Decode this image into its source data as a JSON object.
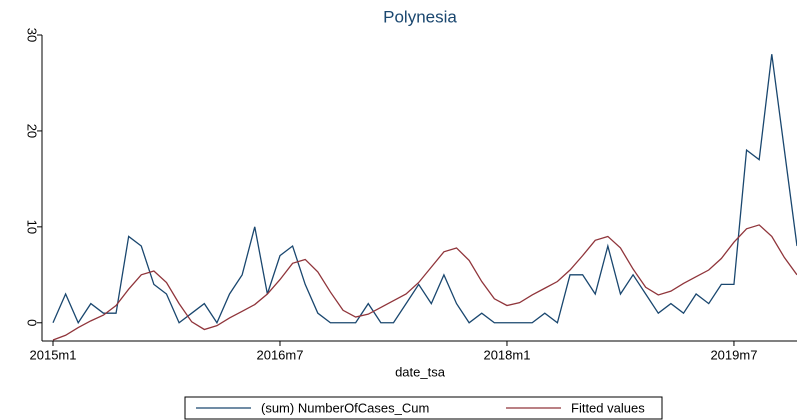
{
  "chart_data": {
    "type": "line",
    "title": "Polynesia",
    "x_label": "date_tsa",
    "grid": false,
    "x": [
      660,
      661,
      662,
      663,
      664,
      665,
      666,
      667,
      668,
      669,
      670,
      671,
      672,
      673,
      674,
      675,
      676,
      677,
      678,
      679,
      680,
      681,
      682,
      683,
      684,
      685,
      686,
      687,
      688,
      689,
      690,
      691,
      692,
      693,
      694,
      695,
      696,
      697,
      698,
      699,
      700,
      701,
      702,
      703,
      704,
      705,
      706,
      707,
      708,
      709,
      710,
      711,
      712,
      713,
      714,
      715,
      716,
      717,
      718,
      719
    ],
    "xlim": [
      660,
      719
    ],
    "xticks": [
      {
        "value": 660,
        "label": "2015m1"
      },
      {
        "value": 678,
        "label": "2016m7"
      },
      {
        "value": 696,
        "label": "2018m1"
      },
      {
        "value": 714,
        "label": "2019m7"
      }
    ],
    "ylim": [
      -1.9,
      30
    ],
    "yticks": [
      0,
      10,
      20,
      30
    ],
    "series": [
      {
        "name": "(sum) NumberOfCases_Cum",
        "color": "#1a476f",
        "values": [
          0,
          3,
          0,
          2,
          1,
          1,
          9,
          8,
          4,
          3,
          0,
          1,
          2,
          0,
          3,
          5,
          10,
          3,
          7,
          8,
          4,
          1,
          0,
          0,
          0,
          2,
          0,
          0,
          2,
          4,
          2,
          5,
          2,
          0,
          1,
          0,
          0,
          0,
          0,
          1,
          0,
          5,
          5,
          3,
          8,
          3,
          5,
          3,
          1,
          2,
          1,
          3,
          2,
          4,
          4,
          18,
          17,
          28,
          18,
          8
        ]
      },
      {
        "name": "Fitted values",
        "color": "#90353b",
        "values": [
          -1.8,
          -1.3,
          -0.5,
          0.2,
          0.8,
          1.8,
          3.5,
          5,
          5.4,
          4.2,
          2,
          0.1,
          -0.7,
          -0.3,
          0.5,
          1.2,
          1.9,
          3,
          4.5,
          6.2,
          6.6,
          5.3,
          3.2,
          1.3,
          0.6,
          0.9,
          1.6,
          2.3,
          3,
          4.2,
          5.8,
          7.4,
          7.8,
          6.5,
          4.3,
          2.5,
          1.8,
          2.1,
          2.9,
          3.6,
          4.3,
          5.5,
          7,
          8.6,
          9,
          7.8,
          5.6,
          3.7,
          2.9,
          3.3,
          4.1,
          4.8,
          5.5,
          6.7,
          8.4,
          9.8,
          10.2,
          9,
          6.8,
          5
        ]
      }
    ]
  }
}
